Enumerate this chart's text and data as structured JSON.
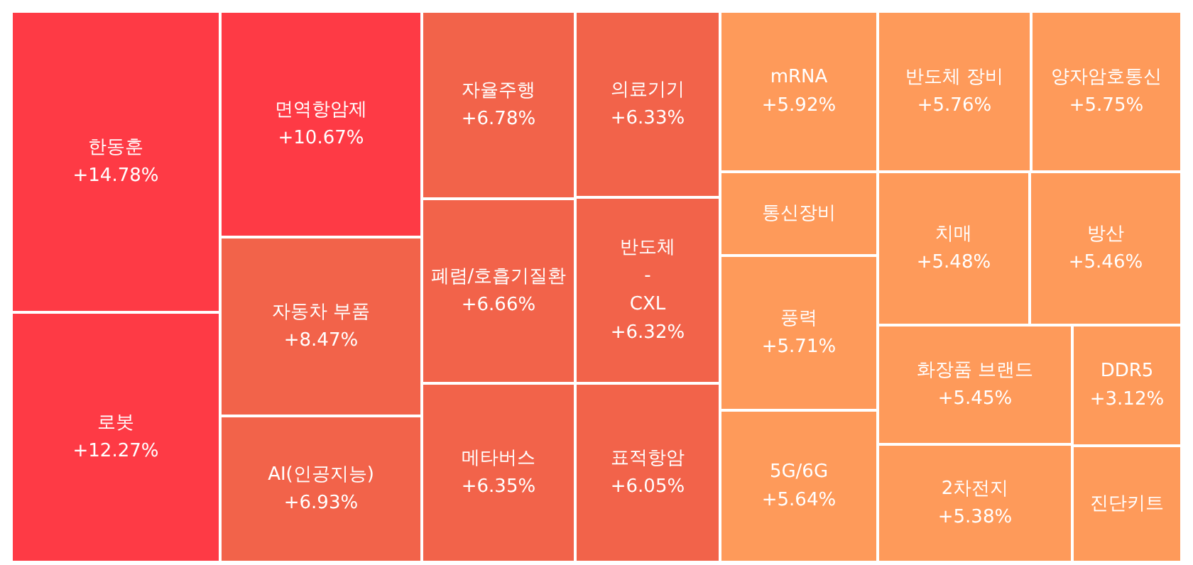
{
  "chart_data": {
    "type": "other",
    "categories": [
      "한동훈",
      "로봇",
      "면역항암제",
      "자동차 부품",
      "AI(인공지능)",
      "자율주행",
      "폐렴/호흡기질환",
      "메타버스",
      "의료기기",
      "반도체 - CXL",
      "표적항암",
      "mRNA",
      "반도체 장비",
      "양자암호통신",
      "통신장비",
      "풍력",
      "5G/6G",
      "치매",
      "방산",
      "화장품 브랜드",
      "2차전지",
      "DDR5",
      "진단키트"
    ],
    "values": [
      14.78,
      12.27,
      10.67,
      8.47,
      6.93,
      6.78,
      6.66,
      6.35,
      6.33,
      6.32,
      6.05,
      5.92,
      5.76,
      5.75,
      null,
      5.71,
      5.64,
      5.48,
      5.46,
      5.45,
      5.38,
      3.12,
      null
    ],
    "value_labels": [
      "+14.78%",
      "+12.27%",
      "+10.67%",
      "+8.47%",
      "+6.93%",
      "+6.78%",
      "+6.66%",
      "+6.35%",
      "+6.33%",
      "+6.32%",
      "+6.05%",
      "+5.92%",
      "+5.76%",
      "+5.75%",
      null,
      "+5.71%",
      "+5.64%",
      "+5.48%",
      "+5.46%",
      "+5.45%",
      "+5.38%",
      "+3.12%",
      null
    ],
    "colors": [
      "#fe3a45",
      "#fe3a45",
      "#fe3a45",
      "#f2634a",
      "#f2634a",
      "#f2634a",
      "#f2634a",
      "#f2634a",
      "#f2634a",
      "#f2634a",
      "#f2634a",
      "#fe9a5a",
      "#fe9a5a",
      "#fe9a5a",
      "#fe9a5a",
      "#fe9a5a",
      "#fe9a5a",
      "#fe9a5a",
      "#fe9a5a",
      "#fe9a5a",
      "#fe9a5a",
      "#fe9a5a",
      "#fe9a5a"
    ]
  }
}
